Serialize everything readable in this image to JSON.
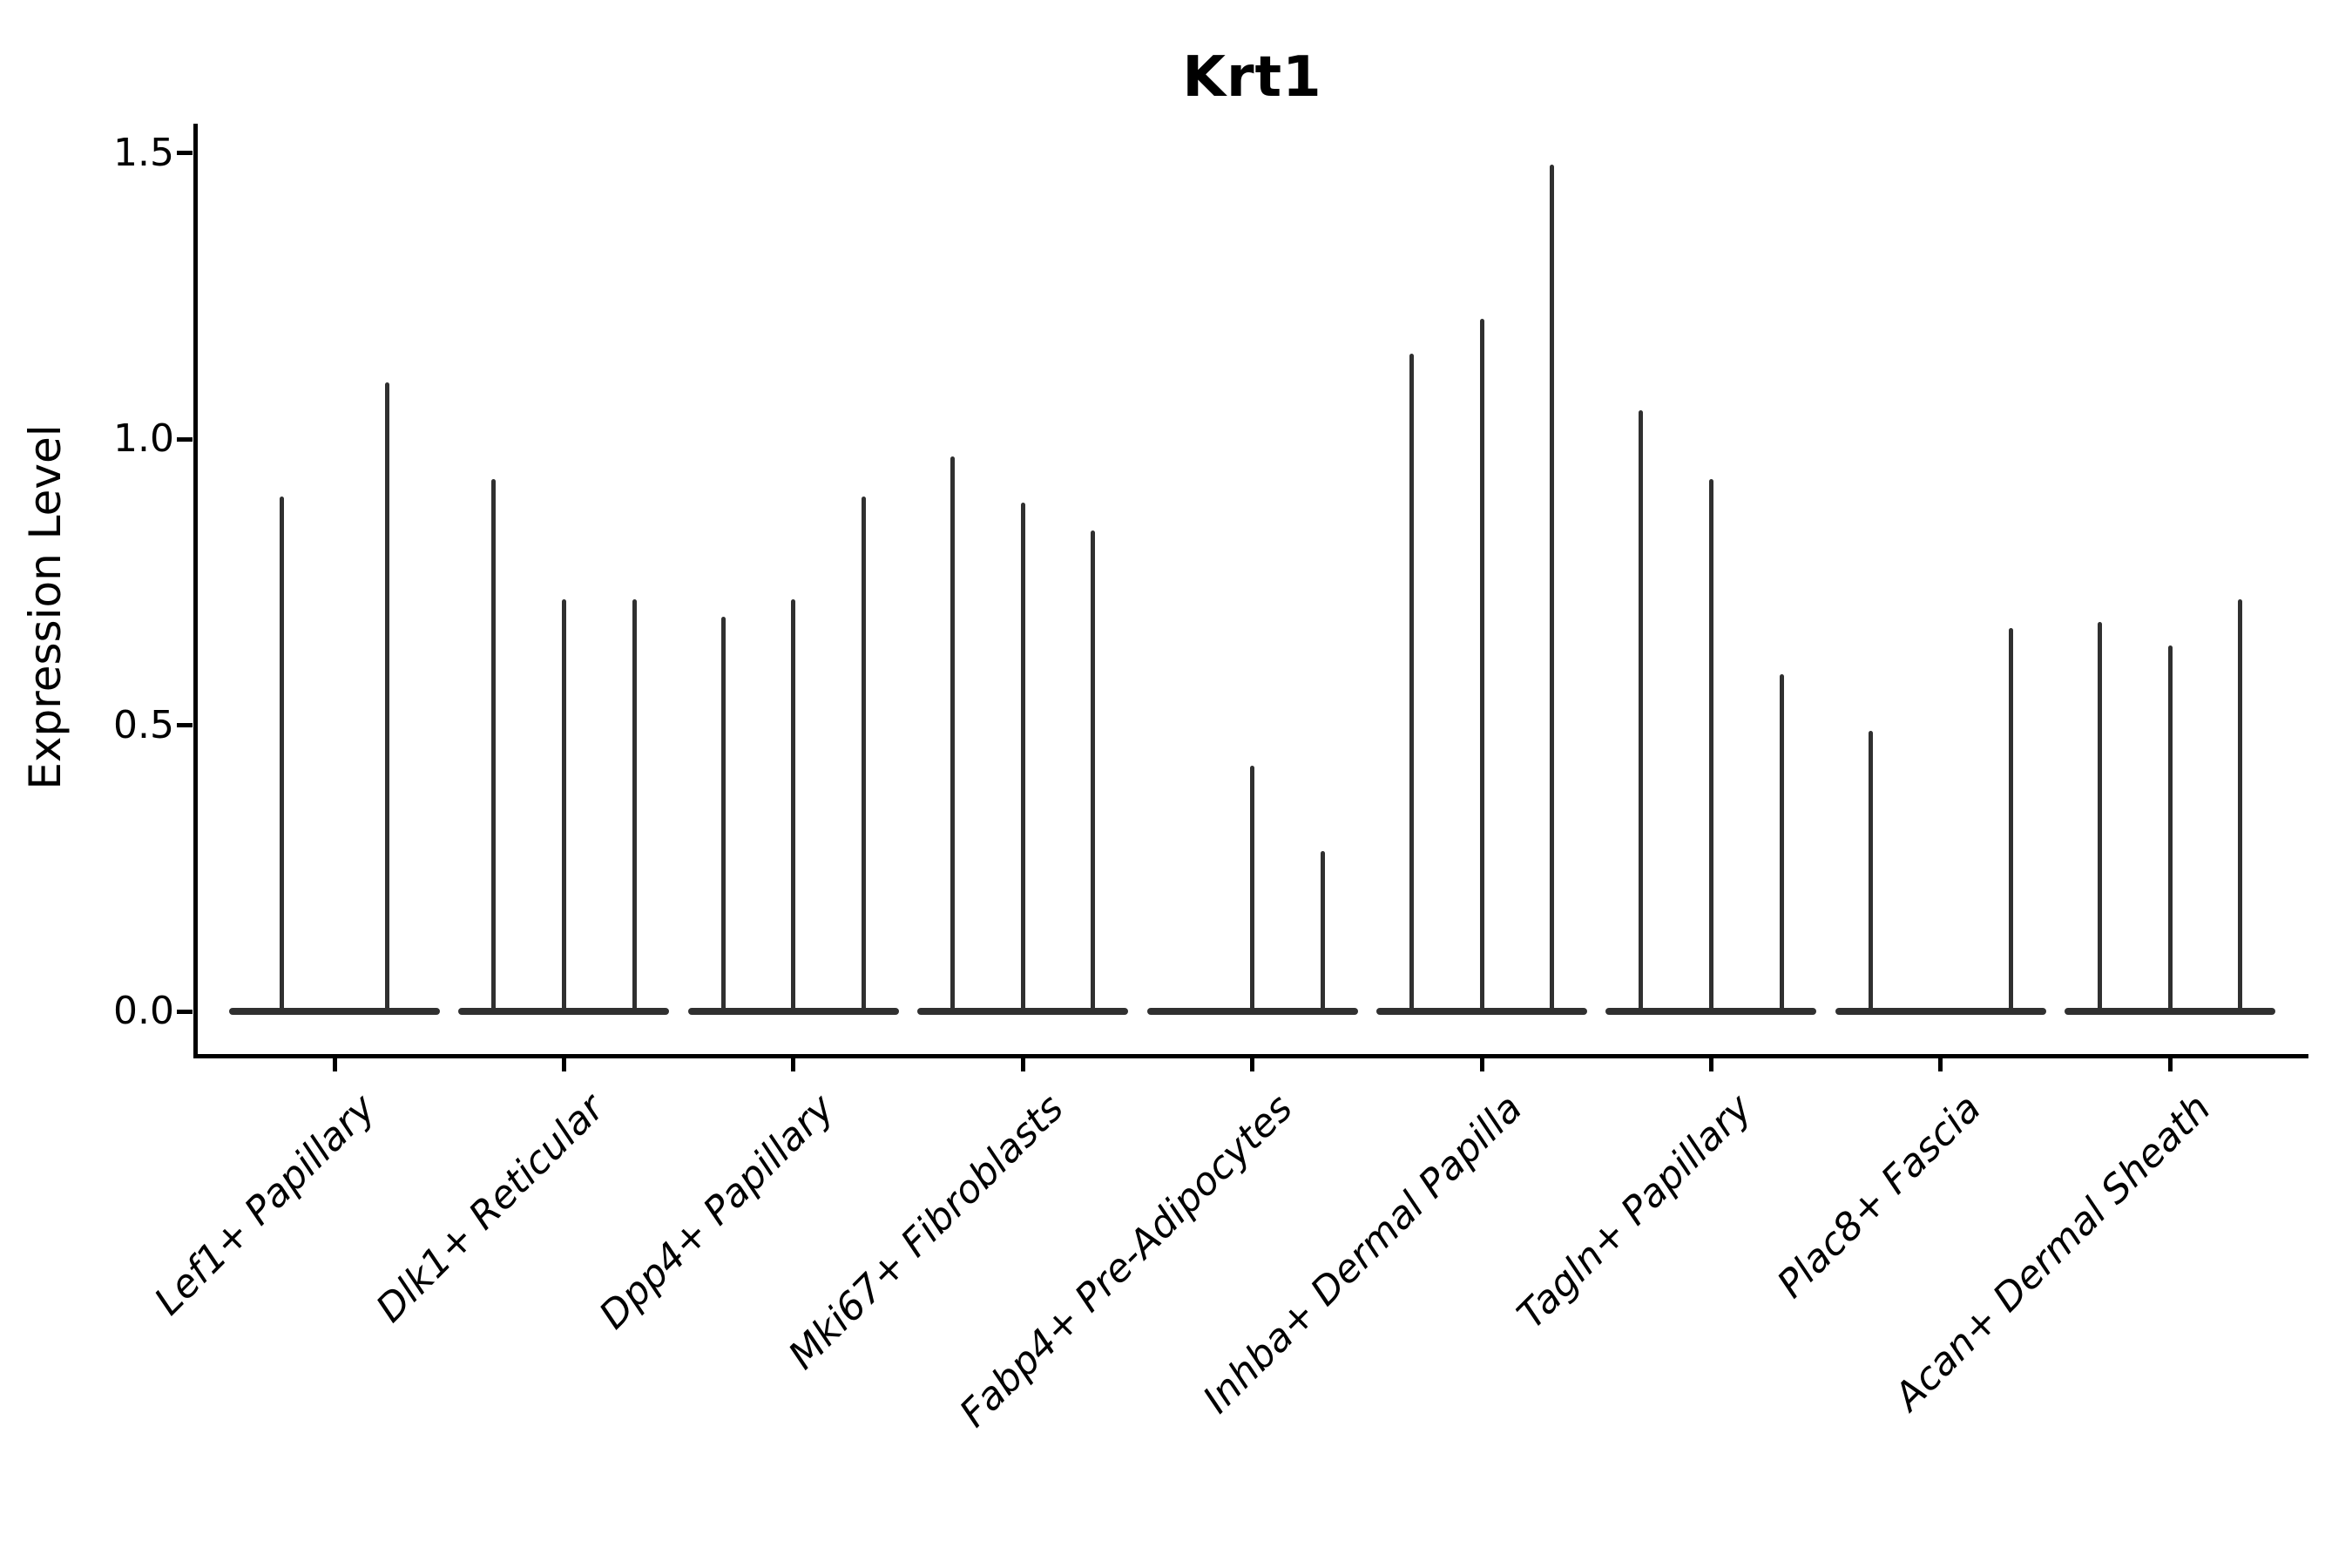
{
  "title": "Krt1",
  "axes": {
    "ylabel": "Expression Level",
    "ytick_labels": [
      "0.0",
      "0.5",
      "1.0",
      "1.5"
    ]
  },
  "chart_data": {
    "type": "violin",
    "title": "Krt1",
    "xlabel": "",
    "ylabel": "Expression Level",
    "ylim": [
      -0.07,
      1.55
    ],
    "yticks": [
      0.0,
      0.5,
      1.0,
      1.5
    ],
    "ytick_labels": [
      "0.0",
      "0.5",
      "1.0",
      "1.5"
    ],
    "grid": false,
    "legend": "none",
    "categories": [
      "Lef1+ Papillary",
      "Dlk1+ Reticular",
      "Dpp4+ Papillary",
      "Mki67+ Fibroblasts",
      "Fabp4+ Pre-Adipocytes",
      "Inhba+ Dermal Papilla",
      "Tagln+ Papillary",
      "Plac8+ Fascia",
      "Acan+ Dermal Sheath"
    ],
    "groups": [
      {
        "category": "Lef1+ Papillary",
        "violin_max_values": [
          0.9,
          1.1
        ]
      },
      {
        "category": "Dlk1+ Reticular",
        "violin_max_values": [
          0.93,
          0.72,
          0.72
        ]
      },
      {
        "category": "Dpp4+ Papillary",
        "violin_max_values": [
          0.69,
          0.72,
          0.9
        ]
      },
      {
        "category": "Mki67+ Fibroblasts",
        "violin_max_values": [
          0.97,
          0.89,
          0.84
        ]
      },
      {
        "category": "Fabp4+ Pre-Adipocytes",
        "violin_max_values": [
          0.0,
          0.43,
          0.28
        ]
      },
      {
        "category": "Inhba+ Dermal Papilla",
        "violin_max_values": [
          1.15,
          1.21,
          1.48
        ]
      },
      {
        "category": "Tagln+ Papillary",
        "violin_max_values": [
          1.05,
          0.93,
          0.59
        ]
      },
      {
        "category": "Plac8+ Fascia",
        "violin_max_values": [
          0.49,
          0.0,
          0.67
        ]
      },
      {
        "category": "Acan+ Dermal Sheath",
        "violin_max_values": [
          0.68,
          0.64,
          0.72
        ]
      }
    ],
    "colors": {
      "violin": "#303030",
      "axis": "#000000",
      "background": "#ffffff"
    },
    "notes": "Sparse single-cell expression violins: each category shows a flat base at 0 with thin density spikes; zero-value violins have no spike."
  }
}
